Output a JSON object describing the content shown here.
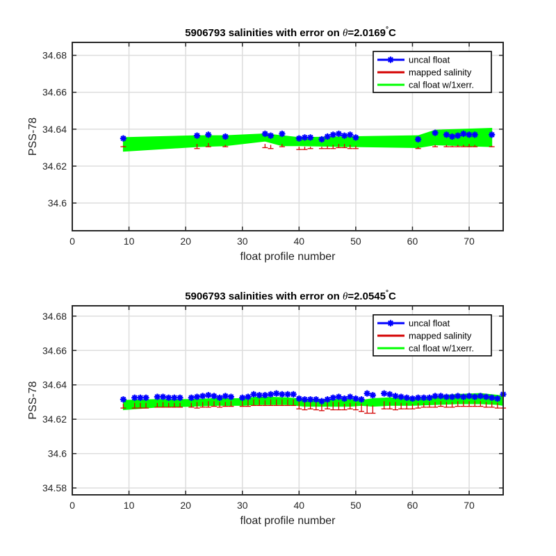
{
  "chart_data": [
    {
      "type": "line",
      "title_prefix": "5906793 salinities with error on ",
      "title_theta": "θ",
      "title_value": "=2.0169",
      "title_degree": "°",
      "title_unit": "C",
      "xlabel": "float profile number",
      "ylabel": "PSS-78",
      "xlim": [
        0,
        76
      ],
      "ylim": [
        34.585,
        34.687
      ],
      "xticks": [
        "0",
        "10",
        "20",
        "30",
        "40",
        "50",
        "60",
        "70"
      ],
      "yticks": [
        "34.6",
        "34.62",
        "34.64",
        "34.66",
        "34.68"
      ],
      "grid": true,
      "legend_position": "top-right",
      "legend": [
        "uncal float",
        "mapped salinity",
        "cal float w/1xerr."
      ],
      "series": [
        {
          "name": "uncal float",
          "x": [
            9,
            22,
            24,
            27,
            34,
            35,
            37,
            40,
            41,
            42,
            44,
            45,
            46,
            47,
            48,
            49,
            50,
            61,
            64,
            66,
            67,
            68,
            69,
            70,
            71,
            74
          ],
          "values": [
            34.635,
            34.6365,
            34.637,
            34.636,
            34.6375,
            34.6365,
            34.6375,
            34.635,
            34.6355,
            34.6355,
            34.6345,
            34.636,
            34.637,
            34.6375,
            34.6365,
            34.637,
            34.6355,
            34.6345,
            34.638,
            34.637,
            34.636,
            34.6365,
            34.6375,
            34.637,
            34.637,
            34.637
          ]
        },
        {
          "name": "mapped salinity",
          "x": [
            9,
            22,
            24,
            27,
            34,
            35,
            37,
            40,
            41,
            42,
            44,
            45,
            46,
            47,
            48,
            49,
            50,
            61,
            64,
            66,
            67,
            68,
            69,
            70,
            71,
            74
          ],
          "values": [
            34.631,
            34.632,
            34.6325,
            34.6315,
            34.632,
            34.6315,
            34.632,
            34.6305,
            34.6305,
            34.6305,
            34.6305,
            34.631,
            34.6315,
            34.632,
            34.632,
            34.6315,
            34.631,
            34.6305,
            34.6315,
            34.6315,
            34.631,
            34.6315,
            34.6315,
            34.632,
            34.6315,
            34.631
          ],
          "error": [
            34.6305,
            34.6295,
            34.6305,
            34.6305,
            34.63,
            34.6295,
            34.6305,
            34.629,
            34.629,
            34.6295,
            34.6295,
            34.6295,
            34.6295,
            34.63,
            34.63,
            34.6295,
            34.6295,
            34.6295,
            34.6305,
            34.6305,
            34.6305,
            34.6305,
            34.6305,
            34.6305,
            34.6305,
            34.6305
          ]
        },
        {
          "name": "cal float w/1xerr.",
          "x": [
            9,
            22,
            27,
            34,
            37,
            40,
            50,
            61,
            64,
            74
          ],
          "upper": [
            34.6355,
            34.6365,
            34.6365,
            34.6375,
            34.6365,
            34.6355,
            34.636,
            34.6365,
            34.6395,
            34.6405
          ],
          "lower": [
            34.628,
            34.6305,
            34.631,
            34.6335,
            34.631,
            34.631,
            34.6305,
            34.63,
            34.6315,
            34.6305
          ]
        }
      ]
    },
    {
      "type": "line",
      "title_prefix": "5906793 salinities with error on ",
      "title_theta": "θ",
      "title_value": "=2.0545",
      "title_degree": "°",
      "title_unit": "C",
      "xlabel": "float profile number",
      "ylabel": "PSS-78",
      "xlim": [
        0,
        76
      ],
      "ylim": [
        34.576,
        34.686
      ],
      "xticks": [
        "0",
        "10",
        "20",
        "30",
        "40",
        "50",
        "60",
        "70"
      ],
      "yticks": [
        "34.58",
        "34.6",
        "34.62",
        "34.64",
        "34.66",
        "34.68"
      ],
      "grid": true,
      "legend_position": "top-right",
      "legend": [
        "uncal float",
        "mapped salinity",
        "cal float w/1xerr."
      ],
      "series": [
        {
          "name": "uncal float",
          "x": [
            9,
            11,
            12,
            13,
            15,
            16,
            17,
            18,
            19,
            21,
            22,
            23,
            24,
            25,
            26,
            27,
            28,
            30,
            31,
            32,
            33,
            34,
            35,
            36,
            37,
            38,
            39,
            40,
            41,
            42,
            43,
            44,
            45,
            46,
            47,
            48,
            49,
            50,
            51,
            52,
            53,
            55,
            56,
            57,
            58,
            59,
            60,
            61,
            62,
            63,
            64,
            65,
            66,
            67,
            68,
            69,
            70,
            71,
            72,
            73,
            74,
            75,
            76
          ],
          "values": [
            34.6315,
            34.6325,
            34.6325,
            34.6325,
            34.633,
            34.633,
            34.6325,
            34.6325,
            34.6325,
            34.6325,
            34.633,
            34.6335,
            34.634,
            34.6335,
            34.6325,
            34.6335,
            34.633,
            34.6325,
            34.633,
            34.6345,
            34.634,
            34.634,
            34.6345,
            34.635,
            34.6345,
            34.6345,
            34.6345,
            34.632,
            34.6315,
            34.6315,
            34.6315,
            34.6305,
            34.6315,
            34.6325,
            34.633,
            34.632,
            34.633,
            34.632,
            34.6315,
            34.635,
            34.634,
            34.635,
            34.6345,
            34.6335,
            34.633,
            34.6325,
            34.632,
            34.6325,
            34.6325,
            34.6325,
            34.6335,
            34.6335,
            34.633,
            34.633,
            34.6335,
            34.633,
            34.6335,
            34.633,
            34.6335,
            34.633,
            34.6325,
            34.632,
            34.6345
          ]
        },
        {
          "name": "mapped salinity",
          "x": [
            9,
            11,
            12,
            13,
            15,
            16,
            17,
            18,
            19,
            21,
            22,
            23,
            24,
            25,
            26,
            27,
            28,
            30,
            31,
            32,
            33,
            34,
            35,
            36,
            37,
            38,
            39,
            40,
            41,
            42,
            43,
            44,
            45,
            46,
            47,
            48,
            49,
            50,
            51,
            52,
            53,
            55,
            56,
            57,
            58,
            59,
            60,
            61,
            62,
            63,
            64,
            65,
            66,
            67,
            68,
            69,
            70,
            71,
            72,
            73,
            74,
            75,
            76
          ],
          "values": [
            34.629,
            34.6295,
            34.6295,
            34.6295,
            34.6295,
            34.63,
            34.6295,
            34.6295,
            34.6295,
            34.6295,
            34.63,
            34.63,
            34.6305,
            34.6305,
            34.63,
            34.63,
            34.6305,
            34.6305,
            34.631,
            34.6315,
            34.6315,
            34.631,
            34.6315,
            34.6315,
            34.6315,
            34.6315,
            34.6315,
            34.6305,
            34.63,
            34.63,
            34.6295,
            34.629,
            34.6295,
            34.63,
            34.63,
            34.629,
            34.6295,
            34.6295,
            34.629,
            34.6285,
            34.628,
            34.6305,
            34.63,
            34.63,
            34.6295,
            34.6295,
            34.629,
            34.6295,
            34.6295,
            34.63,
            34.63,
            34.6305,
            34.63,
            34.63,
            34.6305,
            34.6305,
            34.6305,
            34.6305,
            34.6305,
            34.63,
            34.63,
            34.6295,
            34.6295
          ],
          "error": [
            34.6265,
            34.6265,
            34.6265,
            34.6265,
            34.627,
            34.627,
            34.627,
            34.627,
            34.627,
            34.627,
            34.6265,
            34.627,
            34.627,
            34.6275,
            34.627,
            34.6275,
            34.6275,
            34.6275,
            34.6275,
            34.628,
            34.628,
            34.628,
            34.628,
            34.628,
            34.628,
            34.628,
            34.628,
            34.626,
            34.6255,
            34.626,
            34.6255,
            34.625,
            34.626,
            34.6255,
            34.6255,
            34.6255,
            34.626,
            34.6255,
            34.6245,
            34.6235,
            34.6235,
            34.626,
            34.626,
            34.6255,
            34.626,
            34.626,
            34.626,
            34.6265,
            34.627,
            34.627,
            34.627,
            34.6275,
            34.627,
            34.627,
            34.6275,
            34.6275,
            34.6275,
            34.6275,
            34.6275,
            34.627,
            34.627,
            34.6265,
            34.6265
          ]
        },
        {
          "name": "cal float w/1xerr.",
          "x": [
            9,
            15,
            21,
            25,
            30,
            33,
            38,
            41,
            45,
            49,
            51,
            53,
            56,
            60,
            64,
            68,
            72,
            75,
            76
          ],
          "upper": [
            34.631,
            34.6315,
            34.6315,
            34.632,
            34.632,
            34.633,
            34.6325,
            34.6315,
            34.6315,
            34.6315,
            34.631,
            34.632,
            34.6325,
            34.632,
            34.6335,
            34.6345,
            34.635,
            34.634,
            34.6335
          ],
          "lower": [
            34.6255,
            34.627,
            34.6275,
            34.628,
            34.628,
            34.6285,
            34.6285,
            34.6275,
            34.6275,
            34.6275,
            34.628,
            34.6275,
            34.628,
            34.628,
            34.6285,
            34.629,
            34.629,
            34.6285,
            34.628
          ]
        }
      ]
    }
  ]
}
